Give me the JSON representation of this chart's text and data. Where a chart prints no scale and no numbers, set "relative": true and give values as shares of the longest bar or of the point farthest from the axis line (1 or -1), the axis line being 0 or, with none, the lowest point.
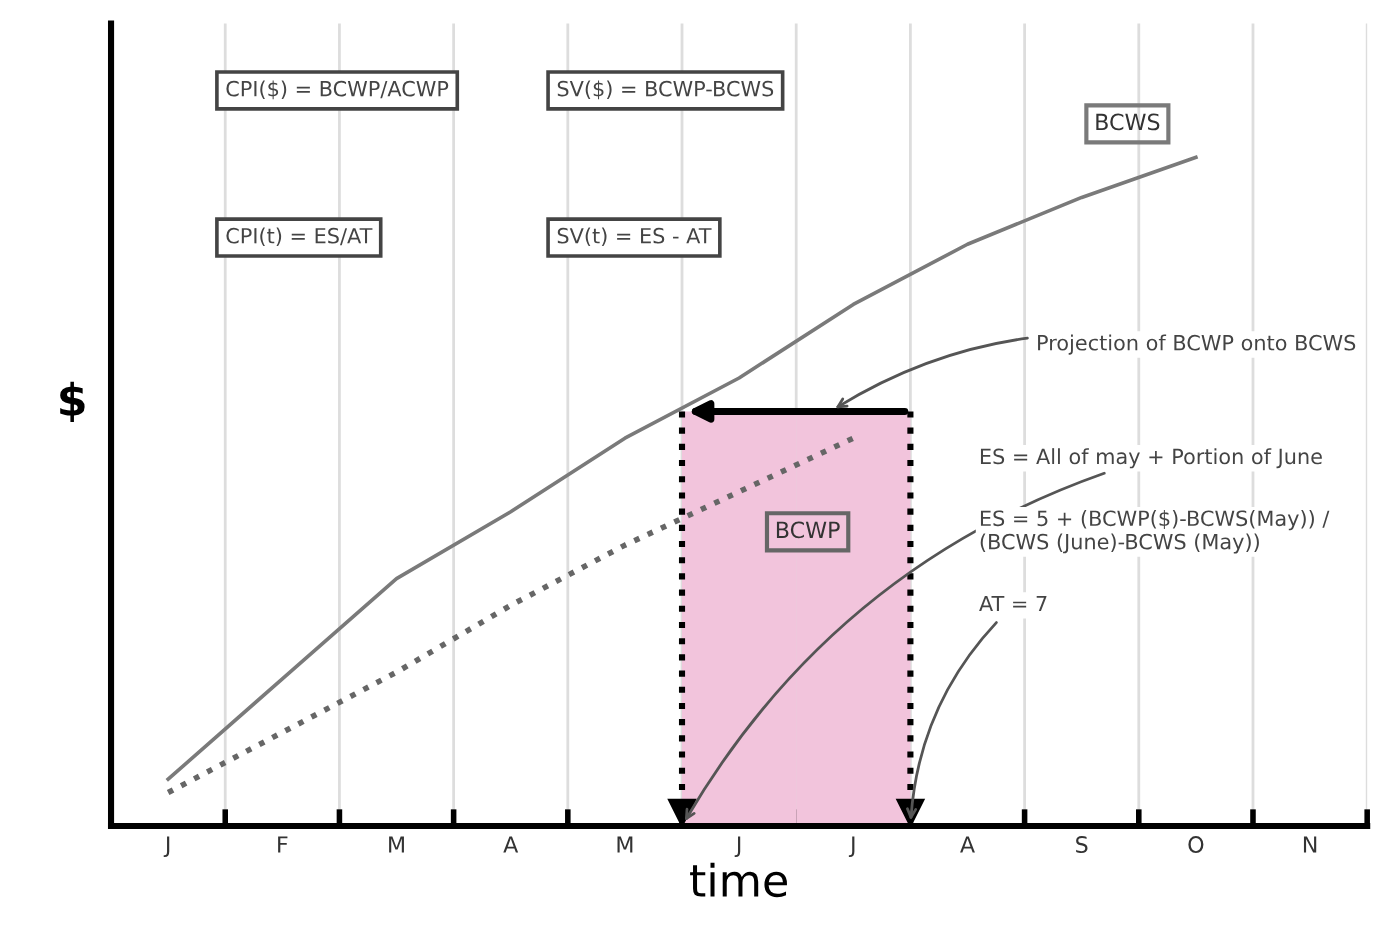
{
  "chart_data": {
    "type": "line",
    "relative": true,
    "xlabel": "time",
    "ylabel": "$",
    "categories": [
      "J",
      "F",
      "M",
      "A",
      "M",
      "J",
      "J",
      "A",
      "S",
      "O",
      "N"
    ],
    "grid": "x",
    "series": [
      {
        "name": "BCWS",
        "color": "#7a7a7a",
        "line_style": "solid",
        "values": [
          0.07,
          0.22,
          0.37,
          0.47,
          0.58,
          0.67,
          0.78,
          0.87,
          0.94,
          1.0,
          null
        ]
      },
      {
        "name": "BCWP",
        "color": "#666666",
        "line_style": "dotted",
        "values": [
          0.05,
          0.14,
          0.23,
          0.33,
          0.42,
          0.5,
          0.58,
          null,
          null,
          null,
          null
        ]
      },
      {
        "type": "bar",
        "color": "#f2c4dc",
        "values": [
          null,
          null,
          null,
          null,
          null,
          0.62,
          0.62,
          null,
          null,
          null,
          null
        ]
      }
    ],
    "annotations": [
      "CPI($) = BCWP/ACWP",
      "SV($) = BCWP-BCWS",
      "CPI(t) = ES/AT",
      "SV(t) = ES - AT",
      "Projection of BCWP onto BCWS",
      "ES = All of may + Portion of June",
      "ES = 5 + (BCWP($)-BCWS(May)) / (BCWS (June)-BCWS (May))",
      "AT = 7"
    ]
  }
}
